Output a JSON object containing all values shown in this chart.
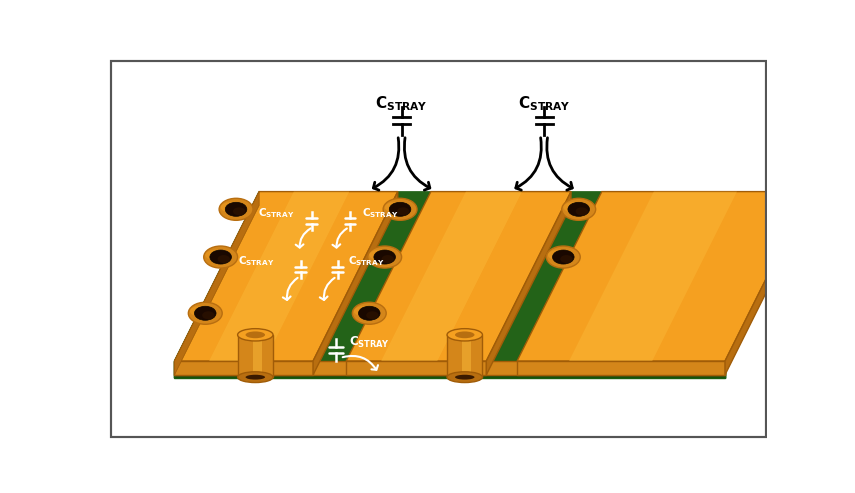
{
  "bg_color": "#ffffff",
  "border_color": "#555555",
  "O_light": "#FBBA3A",
  "O_mid": "#F5A020",
  "O_dark": "#D4861A",
  "O_side": "#B86E10",
  "O_edge": "#A05C08",
  "G_top": "#2E7D1E",
  "G_dark": "#1A5C10",
  "G_front": "#174E0D",
  "G_gap": "#236318",
  "W": "#ffffff",
  "BK": "#000000",
  "figsize": [
    8.55,
    4.93
  ],
  "dpi": 100
}
